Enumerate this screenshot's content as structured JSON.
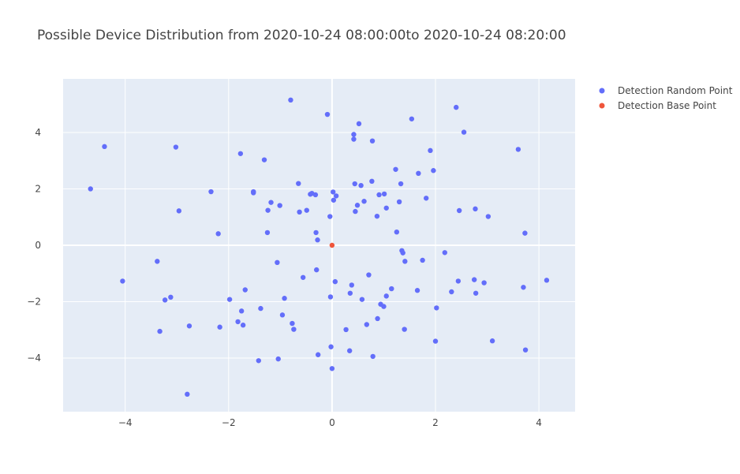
{
  "chart_data": {
    "type": "scatter",
    "title": "Possible Device Distribution from 2020-10-24 08:00:00to 2020-10-24 08:20:00",
    "xlabel": "",
    "ylabel": "",
    "xlim": [
      -5.2,
      4.7
    ],
    "ylim": [
      -5.9,
      5.9
    ],
    "x_ticks": [
      -4,
      -2,
      0,
      2,
      4
    ],
    "y_ticks": [
      -4,
      -2,
      0,
      2,
      4
    ],
    "grid": true,
    "legend_position": "top-right",
    "series": [
      {
        "name": "Detection Random Point",
        "color": "#636efa",
        "points": [
          [
            -4.67,
            2.0
          ],
          [
            -4.4,
            3.5
          ],
          [
            -4.05,
            -1.27
          ],
          [
            -3.38,
            -0.57
          ],
          [
            -3.33,
            -3.05
          ],
          [
            -3.23,
            -1.94
          ],
          [
            -3.12,
            -1.84
          ],
          [
            -3.02,
            3.48
          ],
          [
            -2.96,
            1.22
          ],
          [
            -2.8,
            -5.28
          ],
          [
            -2.76,
            -2.86
          ],
          [
            -2.34,
            1.9
          ],
          [
            -2.2,
            0.41
          ],
          [
            -2.17,
            -2.9
          ],
          [
            -1.98,
            -1.92
          ],
          [
            -1.82,
            -2.71
          ],
          [
            -1.77,
            3.25
          ],
          [
            -1.75,
            -2.33
          ],
          [
            -1.72,
            -2.83
          ],
          [
            -1.68,
            -1.58
          ],
          [
            -1.52,
            1.86
          ],
          [
            -1.52,
            1.9
          ],
          [
            -1.42,
            -4.09
          ],
          [
            -1.38,
            -2.24
          ],
          [
            -1.31,
            3.03
          ],
          [
            -1.25,
            0.45
          ],
          [
            -1.24,
            1.24
          ],
          [
            -1.18,
            1.52
          ],
          [
            -1.06,
            -0.61
          ],
          [
            -1.04,
            -4.03
          ],
          [
            -1.01,
            1.41
          ],
          [
            -0.96,
            -2.47
          ],
          [
            -0.92,
            -1.88
          ],
          [
            -0.8,
            5.15
          ],
          [
            -0.77,
            -2.77
          ],
          [
            -0.74,
            -2.98
          ],
          [
            -0.65,
            2.19
          ],
          [
            -0.63,
            1.18
          ],
          [
            -0.56,
            -1.14
          ],
          [
            -0.49,
            1.24
          ],
          [
            -0.42,
            1.81
          ],
          [
            -0.39,
            1.84
          ],
          [
            -0.32,
            1.79
          ],
          [
            -0.31,
            0.45
          ],
          [
            -0.3,
            -0.87
          ],
          [
            -0.28,
            0.19
          ],
          [
            -0.27,
            -3.88
          ],
          [
            -0.09,
            4.64
          ],
          [
            -0.04,
            1.02
          ],
          [
            -0.03,
            -1.83
          ],
          [
            -0.02,
            -3.6
          ],
          [
            0.0,
            -4.37
          ],
          [
            0.02,
            1.89
          ],
          [
            0.03,
            1.6
          ],
          [
            0.06,
            -1.29
          ],
          [
            0.08,
            1.75
          ],
          [
            0.27,
            -2.99
          ],
          [
            0.34,
            -3.74
          ],
          [
            0.35,
            -1.7
          ],
          [
            0.38,
            -1.41
          ],
          [
            0.42,
            3.93
          ],
          [
            0.42,
            3.76
          ],
          [
            0.44,
            2.18
          ],
          [
            0.45,
            1.2
          ],
          [
            0.49,
            1.42
          ],
          [
            0.52,
            4.31
          ],
          [
            0.56,
            2.12
          ],
          [
            0.58,
            -1.92
          ],
          [
            0.62,
            1.56
          ],
          [
            0.67,
            -2.81
          ],
          [
            0.71,
            -1.05
          ],
          [
            0.77,
            2.27
          ],
          [
            0.78,
            3.7
          ],
          [
            0.79,
            -3.94
          ],
          [
            0.87,
            1.03
          ],
          [
            0.88,
            -2.6
          ],
          [
            0.91,
            1.79
          ],
          [
            0.94,
            -2.09
          ],
          [
            1.0,
            -2.17
          ],
          [
            1.01,
            1.82
          ],
          [
            1.05,
            -1.8
          ],
          [
            1.05,
            1.32
          ],
          [
            1.15,
            -1.54
          ],
          [
            1.23,
            2.69
          ],
          [
            1.25,
            0.47
          ],
          [
            1.3,
            1.54
          ],
          [
            1.33,
            2.18
          ],
          [
            1.35,
            -0.19
          ],
          [
            1.37,
            -0.27
          ],
          [
            1.4,
            -2.98
          ],
          [
            1.41,
            -0.57
          ],
          [
            1.54,
            4.48
          ],
          [
            1.65,
            -1.6
          ],
          [
            1.67,
            2.55
          ],
          [
            1.75,
            -0.53
          ],
          [
            1.82,
            1.67
          ],
          [
            1.9,
            3.36
          ],
          [
            1.96,
            2.65
          ],
          [
            2.0,
            -3.4
          ],
          [
            2.02,
            -2.22
          ],
          [
            2.18,
            -0.26
          ],
          [
            2.31,
            -1.65
          ],
          [
            2.4,
            4.89
          ],
          [
            2.44,
            -1.27
          ],
          [
            2.46,
            1.23
          ],
          [
            2.55,
            4.01
          ],
          [
            2.75,
            -1.22
          ],
          [
            2.77,
            1.29
          ],
          [
            2.78,
            -1.7
          ],
          [
            2.94,
            -1.33
          ],
          [
            3.02,
            1.02
          ],
          [
            3.1,
            -3.39
          ],
          [
            3.6,
            3.4
          ],
          [
            3.7,
            -1.49
          ],
          [
            3.73,
            0.43
          ],
          [
            3.74,
            -3.71
          ],
          [
            4.15,
            -1.24
          ]
        ]
      },
      {
        "name": "Detection Base Point",
        "color": "#ef553b",
        "points": [
          [
            0.0,
            0.0
          ]
        ]
      }
    ]
  }
}
